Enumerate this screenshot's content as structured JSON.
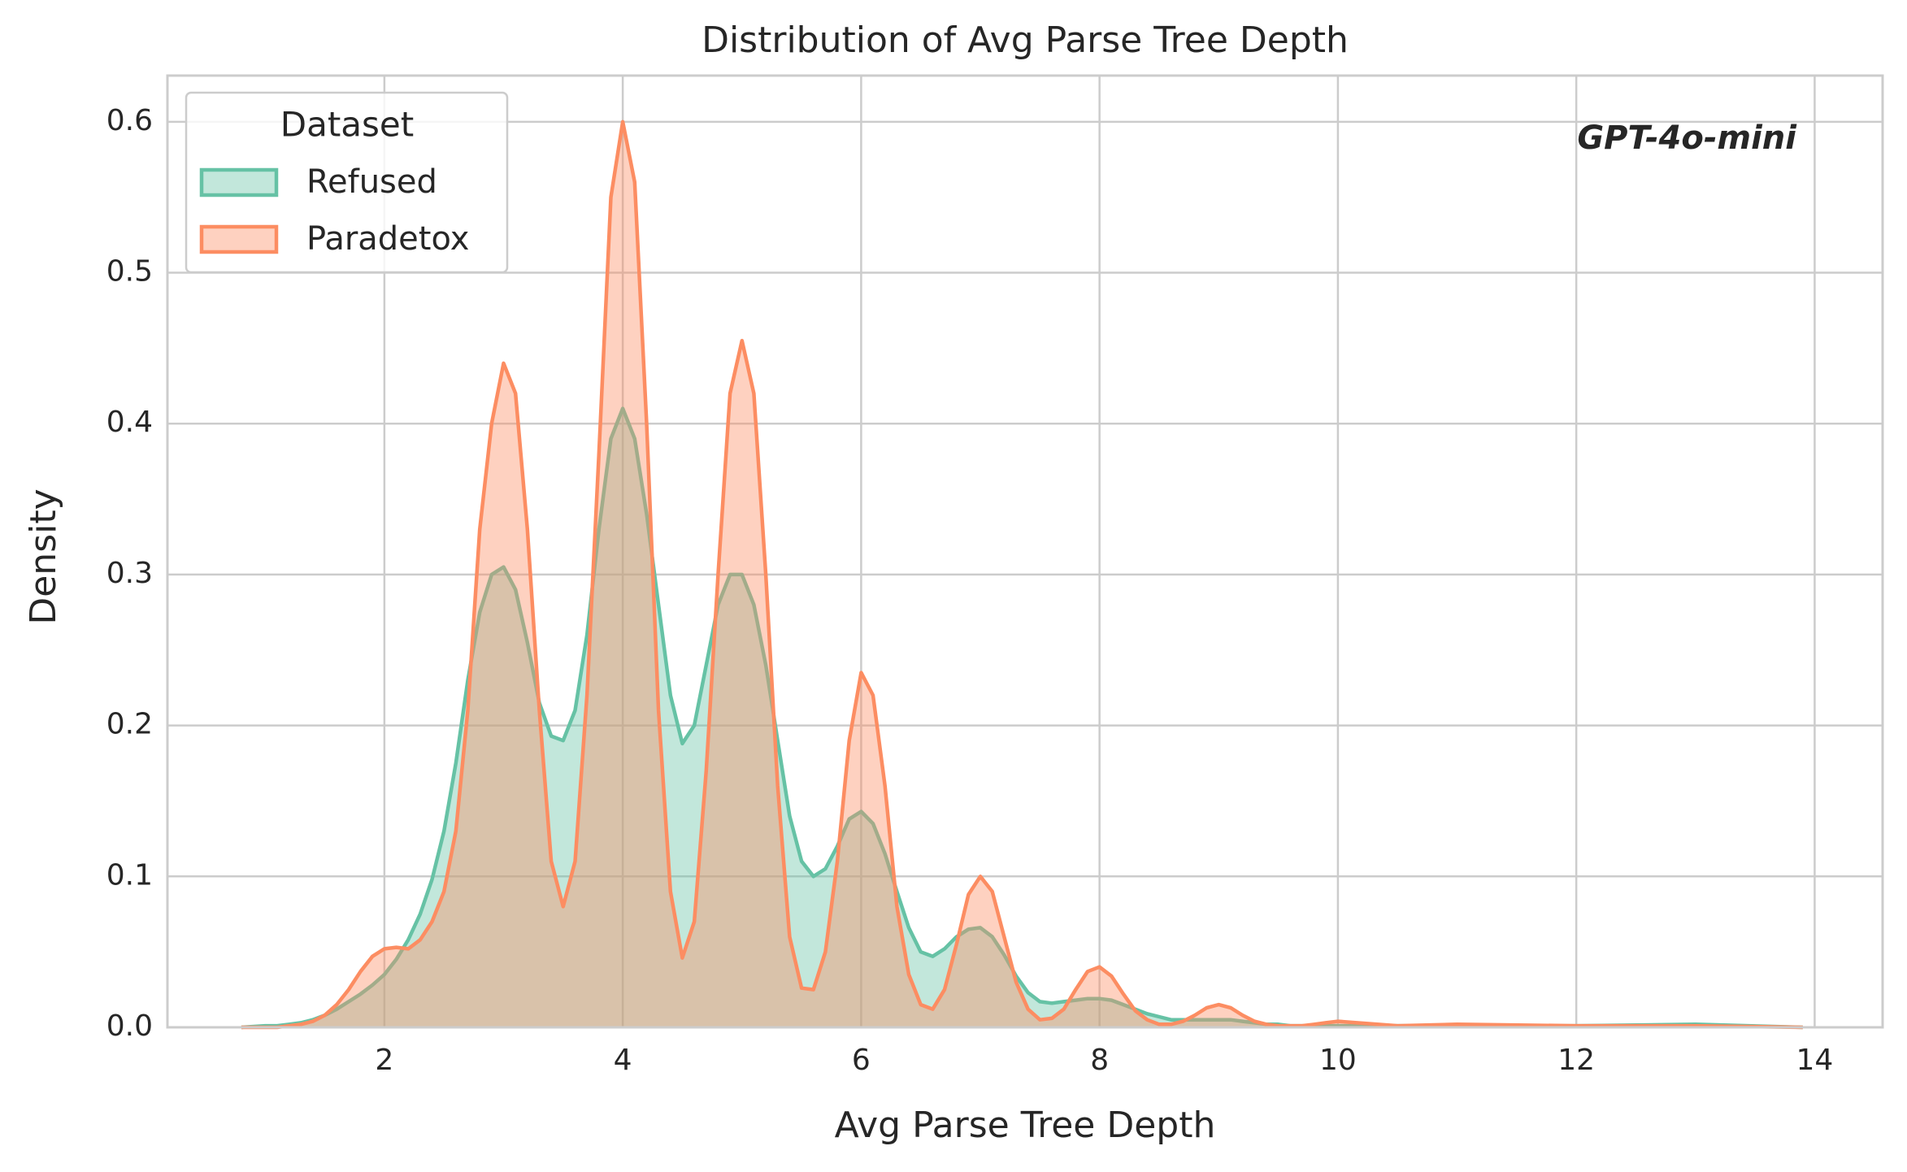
{
  "chart_data": {
    "type": "kde",
    "title": "Distribution of Avg Parse Tree Depth",
    "xlabel": "Avg Parse Tree Depth",
    "ylabel": "Density",
    "annotation": "GPT-4o-mini",
    "legend_title": "Dataset",
    "legend": "upper left",
    "grid": true,
    "xlim": [
      0.18,
      14.57
    ],
    "ylim": [
      0,
      0.6306
    ],
    "xticks": [
      2,
      4,
      6,
      8,
      10,
      12,
      14
    ],
    "yticks": [
      {
        "value": 0,
        "label": "0.0"
      },
      0.1,
      0.2,
      0.3,
      0.4,
      0.5,
      0.6
    ],
    "x": [
      0.8,
      1.0,
      1.1,
      1.2,
      1.3,
      1.4,
      1.5,
      1.6,
      1.7,
      1.8,
      1.9,
      2.0,
      2.1,
      2.2,
      2.3,
      2.4,
      2.5,
      2.6,
      2.7,
      2.8,
      2.9,
      3.0,
      3.1,
      3.2,
      3.3,
      3.4,
      3.5,
      3.6,
      3.7,
      3.8,
      3.9,
      4.0,
      4.1,
      4.2,
      4.3,
      4.4,
      4.5,
      4.6,
      4.7,
      4.8,
      4.9,
      5.0,
      5.1,
      5.2,
      5.3,
      5.4,
      5.5,
      5.6,
      5.7,
      5.8,
      5.9,
      6.0,
      6.1,
      6.2,
      6.3,
      6.4,
      6.5,
      6.6,
      6.7,
      6.8,
      6.9,
      7.0,
      7.1,
      7.2,
      7.3,
      7.4,
      7.5,
      7.6,
      7.7,
      7.8,
      7.9,
      8.0,
      8.1,
      8.2,
      8.3,
      8.4,
      8.5,
      8.6,
      8.7,
      8.8,
      8.9,
      9.0,
      9.1,
      9.2,
      9.3,
      9.4,
      9.5,
      9.6,
      9.7,
      9.8,
      9.9,
      10.0,
      10.5,
      11,
      12,
      13,
      13.9
    ],
    "series": [
      {
        "name": "Refused",
        "color": "#66c2a5",
        "values": [
          0,
          0.001,
          0.001,
          0.002,
          0.003,
          0.005,
          0.008,
          0.012,
          0.017,
          0.022,
          0.028,
          0.035,
          0.045,
          0.058,
          0.075,
          0.098,
          0.13,
          0.175,
          0.23,
          0.275,
          0.3,
          0.305,
          0.29,
          0.255,
          0.215,
          0.193,
          0.19,
          0.21,
          0.26,
          0.33,
          0.39,
          0.41,
          0.39,
          0.34,
          0.28,
          0.22,
          0.188,
          0.2,
          0.24,
          0.28,
          0.3,
          0.3,
          0.28,
          0.24,
          0.19,
          0.14,
          0.11,
          0.1,
          0.105,
          0.12,
          0.138,
          0.143,
          0.135,
          0.115,
          0.09,
          0.066,
          0.05,
          0.047,
          0.052,
          0.06,
          0.065,
          0.066,
          0.06,
          0.048,
          0.034,
          0.023,
          0.017,
          0.016,
          0.017,
          0.018,
          0.019,
          0.019,
          0.018,
          0.015,
          0.012,
          0.009,
          0.007,
          0.005,
          0.005,
          0.005,
          0.005,
          0.005,
          0.005,
          0.004,
          0.003,
          0.002,
          0.002,
          0.001,
          0.001,
          0.001,
          0.001,
          0.001,
          0.001,
          0.001,
          0.001,
          0.002,
          0
        ]
      },
      {
        "name": "Paradetox",
        "color": "#fc8d62",
        "values": [
          0,
          0,
          0,
          0.001,
          0.002,
          0.004,
          0.008,
          0.015,
          0.025,
          0.037,
          0.047,
          0.052,
          0.053,
          0.052,
          0.058,
          0.07,
          0.09,
          0.13,
          0.21,
          0.33,
          0.4,
          0.44,
          0.42,
          0.33,
          0.21,
          0.11,
          0.08,
          0.11,
          0.22,
          0.38,
          0.55,
          0.6,
          0.56,
          0.4,
          0.21,
          0.09,
          0.046,
          0.07,
          0.17,
          0.3,
          0.42,
          0.455,
          0.42,
          0.3,
          0.16,
          0.06,
          0.026,
          0.025,
          0.05,
          0.11,
          0.19,
          0.235,
          0.22,
          0.16,
          0.08,
          0.035,
          0.015,
          0.012,
          0.025,
          0.055,
          0.088,
          0.1,
          0.09,
          0.06,
          0.03,
          0.012,
          0.005,
          0.006,
          0.012,
          0.025,
          0.037,
          0.04,
          0.034,
          0.022,
          0.011,
          0.005,
          0.002,
          0.002,
          0.004,
          0.008,
          0.013,
          0.015,
          0.013,
          0.008,
          0.004,
          0.002,
          0.001,
          0.001,
          0.001,
          0.002,
          0.003,
          0.004,
          0.001,
          0.002,
          0.001,
          0.001,
          0
        ]
      }
    ]
  }
}
